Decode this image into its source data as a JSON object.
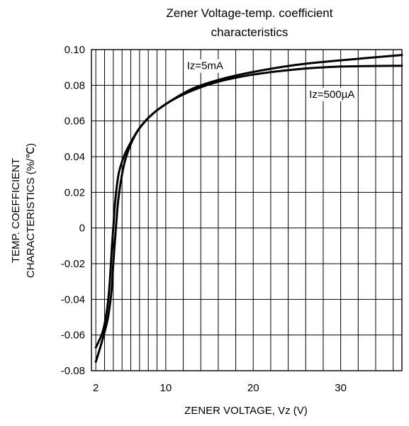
{
  "chart_data": {
    "type": "line",
    "title_line1": "Zener Voltage-temp. coefficient",
    "title_line2": "characteristics",
    "xlabel": "ZENER VOLTAGE, Vz (V)",
    "ylabel_line1": "TEMP. COEFFICIENT",
    "ylabel_line2": "CHARACTERISTICS (%/℃)",
    "xlim": [
      1.5,
      37
    ],
    "ylim": [
      -0.08,
      0.1
    ],
    "x_ticks": [
      2,
      10,
      20,
      30
    ],
    "y_ticks": [
      0.1,
      0.08,
      0.06,
      0.04,
      0.02,
      0,
      -0.02,
      -0.04,
      -0.06,
      -0.08
    ],
    "y_tick_labels": [
      "0.10",
      "0.08",
      "0.06",
      "0.04",
      "0.02",
      "0",
      "-0.02",
      "-0.04",
      "-0.06",
      "-0.08"
    ],
    "grid": true,
    "series": [
      {
        "name": "Iz=5mA",
        "x": [
          2.0,
          2.8,
          3.4,
          3.8,
          4.0,
          4.3,
          4.6,
          5.2,
          6.0,
          7.0,
          8.5,
          10.5,
          13.0,
          16.0,
          20.0,
          25.0,
          30.0,
          37.0
        ],
        "y": [
          -0.075,
          -0.062,
          -0.05,
          -0.035,
          -0.02,
          0.0,
          0.017,
          0.035,
          0.047,
          0.056,
          0.064,
          0.071,
          0.077,
          0.082,
          0.086,
          0.089,
          0.0905,
          0.091
        ]
      },
      {
        "name": "Iz=500µA",
        "x": [
          2.0,
          2.8,
          3.3,
          3.6,
          3.85,
          4.0,
          4.2,
          4.6,
          5.2,
          6.0,
          7.0,
          8.5,
          10.5,
          13.0,
          16.0,
          20.0,
          25.0,
          30.0,
          37.0
        ],
        "y": [
          -0.067,
          -0.058,
          -0.045,
          -0.03,
          -0.01,
          0.0,
          0.014,
          0.03,
          0.04,
          0.048,
          0.056,
          0.064,
          0.071,
          0.078,
          0.083,
          0.0875,
          0.0915,
          0.094,
          0.097
        ]
      }
    ],
    "annotations": [
      {
        "text": "Iz=5mA",
        "x": 14.5,
        "y": 0.091
      },
      {
        "text": "Iz=500µA",
        "x": 29.0,
        "y": 0.075
      }
    ]
  }
}
